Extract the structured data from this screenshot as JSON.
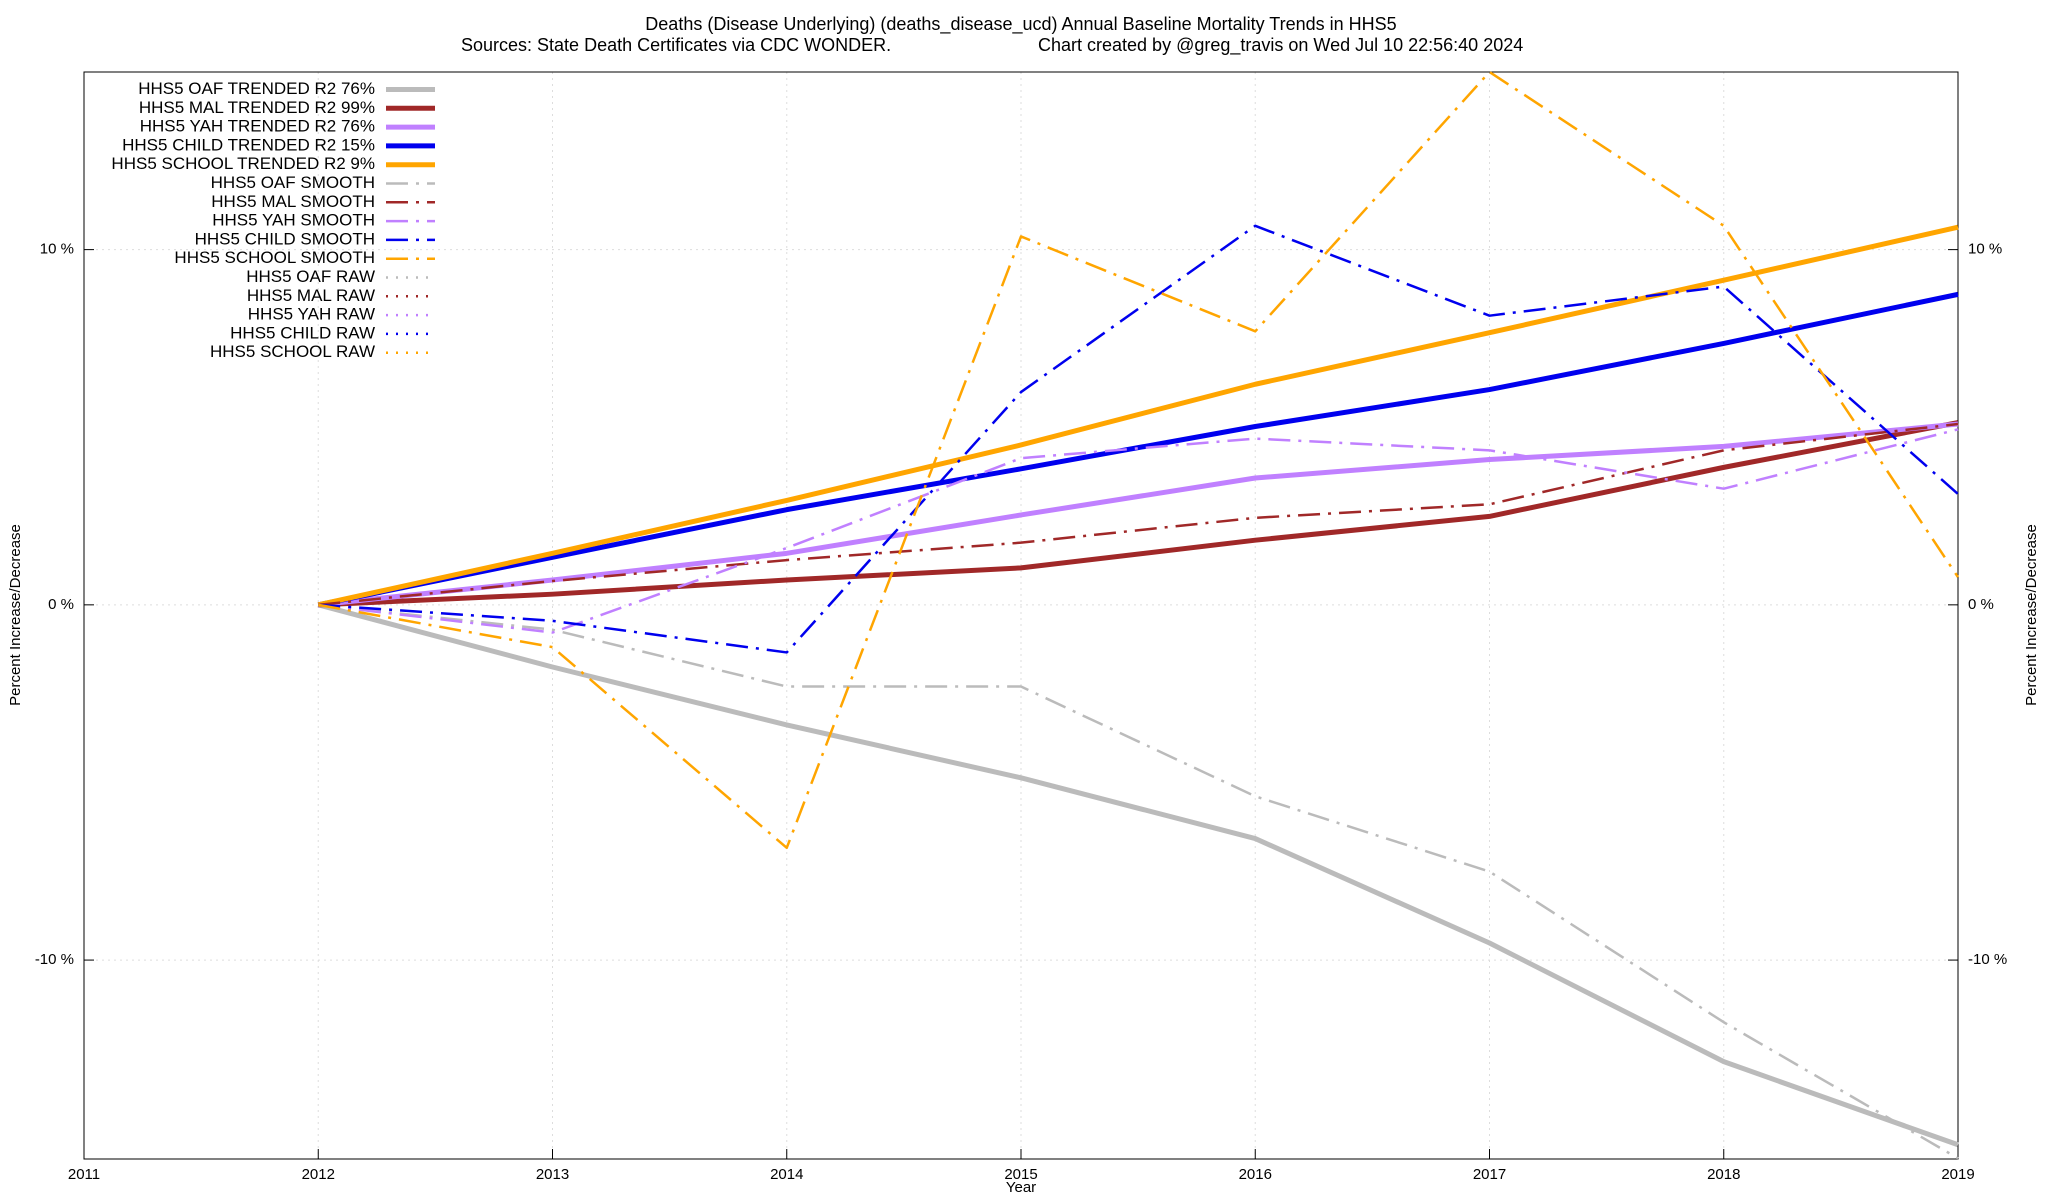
{
  "chart_data": {
    "type": "line",
    "title": "Deaths (Disease Underlying) (deaths_disease_ucd)  Annual Baseline Mortality Trends in HHS5",
    "subtitle": "Sources: State Death Certificates via CDC WONDER.",
    "credit": "Chart created by @greg_travis on Wed Jul 10 22:56:40 2024",
    "xlabel": "Year",
    "ylabel": "Percent Increase/Decrease",
    "y2label": "Percent Increase/Decrease",
    "x": [
      2012,
      2013,
      2014,
      2015,
      2016,
      2017,
      2018,
      2019
    ],
    "xlim": [
      2011,
      2019
    ],
    "xticks": [
      2011,
      2012,
      2013,
      2014,
      2015,
      2016,
      2017,
      2018,
      2019
    ],
    "ylim": [
      -15.6,
      15.0
    ],
    "yticks": [
      {
        "value": -10,
        "label": "-10 %"
      },
      {
        "value": 0,
        "label": "0 %"
      },
      {
        "value": 10,
        "label": "10 %"
      }
    ],
    "grid": true,
    "legend": "top-left",
    "series": [
      {
        "name": "HHS5 OAF TRENDED R2  76%",
        "color": "#bbbbbb",
        "style": "solid",
        "values": [
          0,
          -1.75,
          -3.38,
          -4.87,
          -6.58,
          -9.52,
          -12.86,
          -15.2
        ]
      },
      {
        "name": "HHS5 MAL TRENDED R2  99%",
        "color": "#a02828",
        "style": "solid",
        "values": [
          0,
          0.3,
          0.7,
          1.04,
          1.82,
          2.49,
          3.87,
          5.13
        ]
      },
      {
        "name": "HHS5 YAH TRENDED R2  76%",
        "color": "#c080ff",
        "style": "solid",
        "values": [
          0,
          0.7,
          1.45,
          2.53,
          3.57,
          4.09,
          4.46,
          5.09
        ]
      },
      {
        "name": "HHS5 CHILD TRENDED R2  15%",
        "color": "#0000ee",
        "style": "solid",
        "values": [
          0,
          1.34,
          2.68,
          3.83,
          5.02,
          6.06,
          7.36,
          8.74
        ]
      },
      {
        "name": "HHS5 SCHOOL TRENDED R2   9%",
        "color": "#ffa500",
        "style": "solid",
        "values": [
          0,
          1.45,
          2.94,
          4.5,
          6.21,
          7.66,
          9.14,
          10.63
        ]
      },
      {
        "name": "HHS5 OAF SMOOTH",
        "color": "#bbbbbb",
        "style": "dashdot",
        "values": [
          0,
          -0.7,
          -2.3,
          -2.3,
          -5.39,
          -7.51,
          -11.75,
          -15.58
        ]
      },
      {
        "name": "HHS5 MAL SMOOTH",
        "color": "#a02828",
        "style": "dashdot",
        "values": [
          0,
          0.67,
          1.26,
          1.75,
          2.45,
          2.83,
          4.35,
          5.09
        ]
      },
      {
        "name": "HHS5 YAH SMOOTH",
        "color": "#c080ff",
        "style": "dashdot",
        "values": [
          0,
          -0.78,
          1.6,
          4.13,
          4.68,
          4.35,
          3.27,
          4.94
        ]
      },
      {
        "name": "HHS5 CHILD SMOOTH",
        "color": "#0000ee",
        "style": "dashdot",
        "values": [
          0,
          -0.45,
          -1.34,
          5.99,
          10.67,
          8.14,
          8.96,
          3.12
        ]
      },
      {
        "name": "HHS5 SCHOOL SMOOTH",
        "color": "#ffa500",
        "style": "dashdot",
        "values": [
          0,
          -1.19,
          -6.84,
          10.37,
          7.7,
          15.0,
          10.67,
          0.78
        ]
      },
      {
        "name": "HHS5 OAF RAW",
        "color": "#bbbbbb",
        "style": "dotted",
        "values": [
          null,
          null,
          null,
          null,
          null,
          null,
          null,
          null
        ]
      },
      {
        "name": "HHS5 MAL RAW",
        "color": "#a02828",
        "style": "dotted",
        "values": [
          null,
          null,
          null,
          null,
          null,
          null,
          null,
          null
        ]
      },
      {
        "name": "HHS5 YAH RAW",
        "color": "#c080ff",
        "style": "dotted",
        "values": [
          null,
          null,
          null,
          null,
          null,
          null,
          null,
          null
        ]
      },
      {
        "name": "HHS5 CHILD RAW",
        "color": "#0000ee",
        "style": "dotted",
        "values": [
          null,
          null,
          null,
          null,
          null,
          null,
          null,
          null
        ]
      },
      {
        "name": "HHS5 SCHOOL RAW",
        "color": "#ffa500",
        "style": "dotted",
        "values": [
          null,
          null,
          null,
          null,
          null,
          null,
          null,
          null
        ]
      }
    ]
  }
}
